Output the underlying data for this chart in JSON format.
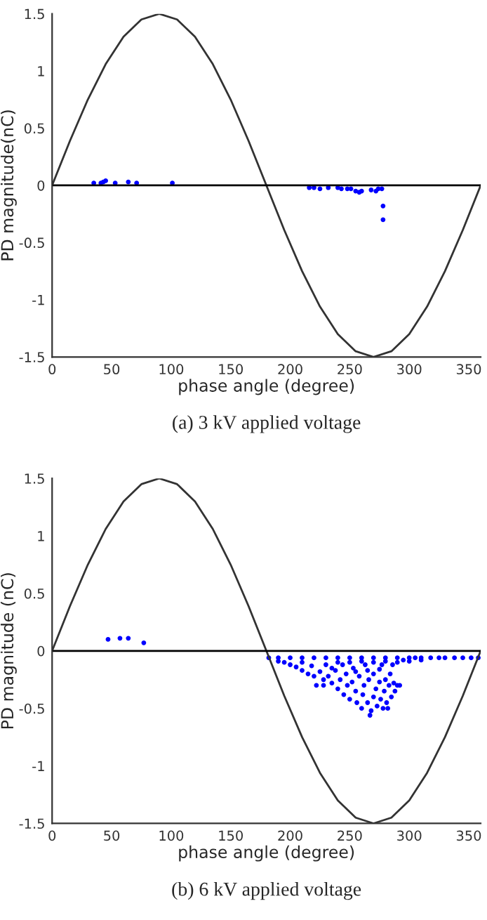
{
  "chart_data": [
    {
      "type": "scatter",
      "title": "(a) 3 kV applied voltage",
      "xlabel": "phase angle (degree)",
      "ylabel": "PD magnitude(nC)",
      "xlim": [
        0,
        360
      ],
      "ylim": [
        -1.5,
        1.5
      ],
      "xticks": [
        0,
        50,
        100,
        150,
        200,
        250,
        300,
        350
      ],
      "yticks": [
        -1.5,
        -1,
        -0.5,
        0,
        0.5,
        1,
        1.5
      ],
      "grid": false,
      "legend": false,
      "marker": "circle",
      "ref_lines": [
        {
          "axis": "y",
          "value": 0,
          "color": "#000000"
        }
      ],
      "series": [
        {
          "type": "line",
          "color": "#333333",
          "line_style": "solid",
          "marker": "none",
          "x": [
            0,
            15,
            30,
            45,
            60,
            75,
            90,
            105,
            120,
            135,
            150,
            165,
            180,
            195,
            210,
            225,
            240,
            255,
            270,
            285,
            300,
            315,
            330,
            345,
            360
          ],
          "values": [
            0,
            0.39,
            0.75,
            1.06,
            1.3,
            1.45,
            1.5,
            1.45,
            1.3,
            1.06,
            0.75,
            0.39,
            0,
            -0.39,
            -0.75,
            -1.06,
            -1.3,
            -1.45,
            -1.5,
            -1.45,
            -1.3,
            -1.06,
            -0.75,
            -0.39,
            0
          ]
        },
        {
          "color": "#0000ff",
          "x": [
            35,
            41,
            43,
            45,
            53,
            64,
            71,
            101,
            216,
            220,
            225,
            232,
            240,
            243,
            248,
            251,
            255,
            258,
            260,
            268,
            272,
            274,
            277,
            278,
            278
          ],
          "values": [
            0.02,
            0.02,
            0.03,
            0.04,
            0.02,
            0.03,
            0.02,
            0.02,
            -0.02,
            -0.02,
            -0.03,
            -0.02,
            -0.02,
            -0.03,
            -0.03,
            -0.03,
            -0.05,
            -0.06,
            -0.05,
            -0.04,
            -0.05,
            -0.03,
            -0.03,
            -0.18,
            -0.3
          ]
        }
      ]
    },
    {
      "type": "scatter",
      "title": "(b) 6 kV applied voltage",
      "xlabel": "phase angle (degree)",
      "ylabel": "PD magnitude (nC)",
      "xlim": [
        0,
        360
      ],
      "ylim": [
        -1.5,
        1.5
      ],
      "xticks": [
        0,
        50,
        100,
        150,
        200,
        250,
        300,
        350
      ],
      "yticks": [
        -1.5,
        -1,
        -0.5,
        0,
        0.5,
        1,
        1.5
      ],
      "grid": false,
      "legend": false,
      "marker": "circle",
      "ref_lines": [
        {
          "axis": "y",
          "value": 0,
          "color": "#000000"
        }
      ],
      "series": [
        {
          "type": "line",
          "color": "#333333",
          "line_style": "solid",
          "marker": "none",
          "x": [
            0,
            15,
            30,
            45,
            60,
            75,
            90,
            105,
            120,
            135,
            150,
            165,
            180,
            195,
            210,
            225,
            240,
            255,
            270,
            285,
            300,
            315,
            330,
            345,
            360
          ],
          "values": [
            0,
            0.39,
            0.75,
            1.06,
            1.3,
            1.45,
            1.5,
            1.45,
            1.3,
            1.06,
            0.75,
            0.39,
            0,
            -0.39,
            -0.75,
            -1.06,
            -1.3,
            -1.45,
            -1.5,
            -1.45,
            -1.3,
            -1.06,
            -0.75,
            -0.39,
            0
          ]
        },
        {
          "color": "#0000ff",
          "x": [
            47,
            57,
            64,
            77,
            182,
            190,
            200,
            210,
            220,
            230,
            240,
            250,
            260,
            270,
            280,
            290,
            300,
            305,
            310,
            318,
            325,
            330,
            338,
            345,
            352,
            358,
            190,
            195,
            200,
            205,
            210,
            210,
            215,
            218,
            220,
            222,
            225,
            228,
            228,
            230,
            232,
            235,
            238,
            240,
            242,
            244,
            245,
            247,
            248,
            250,
            252,
            253,
            255,
            256,
            258,
            260,
            261,
            262,
            263,
            265,
            266,
            267,
            268,
            270,
            270,
            272,
            273,
            275,
            276,
            277,
            278,
            279,
            280,
            281,
            282,
            283,
            284,
            285,
            286,
            287,
            288,
            290,
            292,
            290,
            295,
            300,
            310,
            240,
            250,
            260,
            270,
            280,
            235,
            255,
            265,
            275
          ],
          "values": [
            0.1,
            0.11,
            0.11,
            0.07,
            -0.06,
            -0.06,
            -0.06,
            -0.06,
            -0.06,
            -0.06,
            -0.06,
            -0.06,
            -0.06,
            -0.06,
            -0.06,
            -0.06,
            -0.06,
            -0.06,
            -0.06,
            -0.06,
            -0.06,
            -0.06,
            -0.06,
            -0.06,
            -0.06,
            -0.06,
            -0.09,
            -0.1,
            -0.12,
            -0.14,
            -0.1,
            -0.17,
            -0.2,
            -0.13,
            -0.22,
            -0.3,
            -0.18,
            -0.25,
            -0.3,
            -0.12,
            -0.22,
            -0.28,
            -0.17,
            -0.33,
            -0.25,
            -0.12,
            -0.38,
            -0.2,
            -0.3,
            -0.42,
            -0.27,
            -0.15,
            -0.35,
            -0.45,
            -0.22,
            -0.5,
            -0.38,
            -0.3,
            -0.12,
            -0.45,
            -0.25,
            -0.56,
            -0.52,
            -0.4,
            -0.2,
            -0.33,
            -0.48,
            -0.27,
            -0.42,
            -0.12,
            -0.5,
            -0.35,
            -0.25,
            -0.45,
            -0.5,
            -0.3,
            -0.2,
            -0.4,
            -0.12,
            -0.28,
            -0.35,
            -0.3,
            -0.3,
            -0.1,
            -0.08,
            -0.09,
            -0.08,
            -0.1,
            -0.1,
            -0.09,
            -0.1,
            -0.09,
            -0.15,
            -0.18,
            -0.17,
            -0.16
          ]
        }
      ]
    }
  ]
}
